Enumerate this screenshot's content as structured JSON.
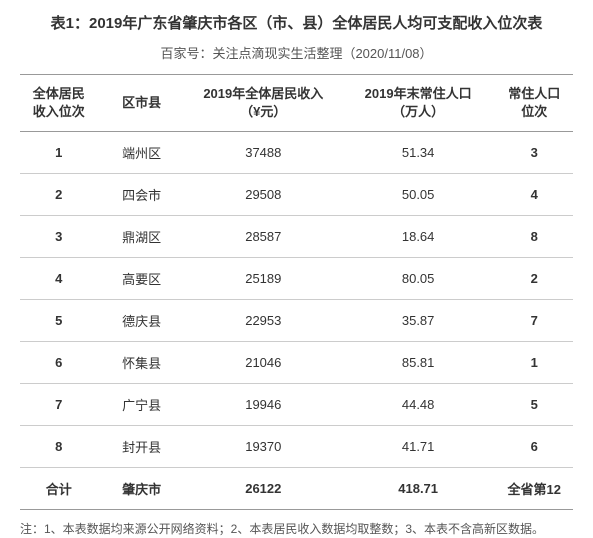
{
  "title": "表1：2019年广东省肇庆市各区（市、县）全体居民人均可支配收入位次表",
  "subtitle": "百家号：关注点滴现实生活整理（2020/11/08）",
  "columns": {
    "rank": "全体居民\n收入位次",
    "district": "区市县",
    "income": "2019年全体居民收入\n（¥元）",
    "population": "2019年末常住人口\n（万人）",
    "poprank": "常住人口\n位次"
  },
  "rows": [
    {
      "rank": "1",
      "district": "端州区",
      "income": "37488",
      "population": "51.34",
      "poprank": "3"
    },
    {
      "rank": "2",
      "district": "四会市",
      "income": "29508",
      "population": "50.05",
      "poprank": "4"
    },
    {
      "rank": "3",
      "district": "鼎湖区",
      "income": "28587",
      "population": "18.64",
      "poprank": "8"
    },
    {
      "rank": "4",
      "district": "高要区",
      "income": "25189",
      "population": "80.05",
      "poprank": "2"
    },
    {
      "rank": "5",
      "district": "德庆县",
      "income": "22953",
      "population": "35.87",
      "poprank": "7"
    },
    {
      "rank": "6",
      "district": "怀集县",
      "income": "21046",
      "population": "85.81",
      "poprank": "1"
    },
    {
      "rank": "7",
      "district": "广宁县",
      "income": "19946",
      "population": "44.48",
      "poprank": "5"
    },
    {
      "rank": "8",
      "district": "封开县",
      "income": "19370",
      "population": "41.71",
      "poprank": "6"
    }
  ],
  "summary": {
    "rank": "合计",
    "district": "肇庆市",
    "income": "26122",
    "population": "418.71",
    "poprank": "全省第12"
  },
  "footnote": "注：1、本表数据均来源公开网络资料；2、本表居民收入数据均取整数；3、本表不含高新区数据。",
  "styling": {
    "background_color": "#ffffff",
    "text_color": "#333333",
    "border_color_strong": "#999999",
    "border_color_light": "#cccccc",
    "title_fontsize": 15,
    "subtitle_fontsize": 13,
    "body_fontsize": 13,
    "footnote_fontsize": 12,
    "column_widths_pct": [
      14,
      16,
      28,
      28,
      14
    ]
  }
}
